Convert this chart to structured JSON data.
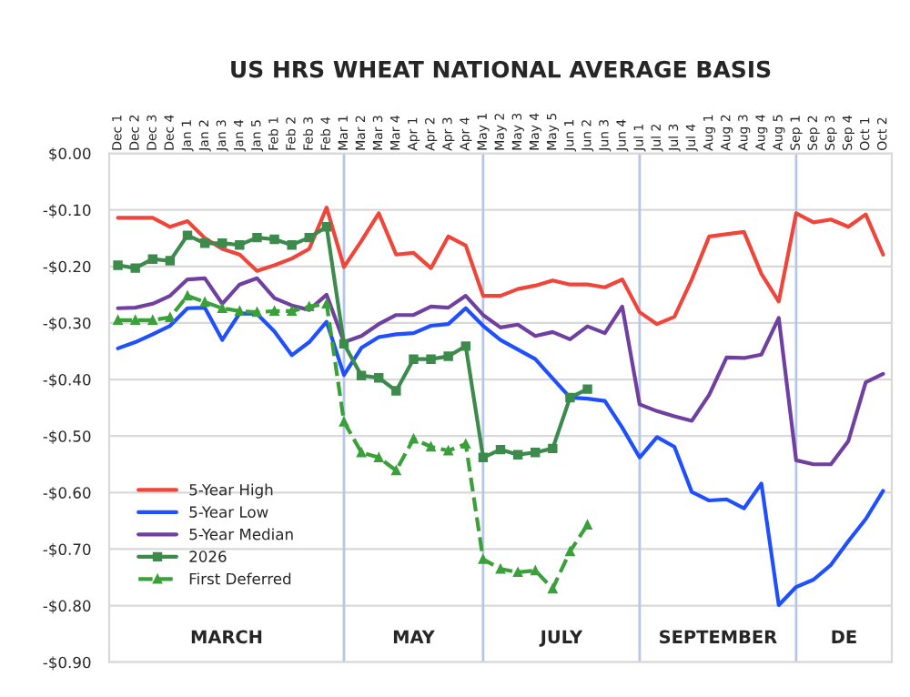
{
  "chart_data": {
    "type": "line",
    "title": "US HRS WHEAT NATIONAL AVERAGE BASIS",
    "categories": [
      "Dec 1",
      "Dec 2",
      "Dec 3",
      "Dec 4",
      "Jan 1",
      "Jan 2",
      "Jan 3",
      "Jan 4",
      "Jan 5",
      "Feb 1",
      "Feb 2",
      "Feb 3",
      "Feb 4",
      "Mar 1",
      "Mar 2",
      "Mar 3",
      "Mar 4",
      "Apr 1",
      "Apr 2",
      "Apr 3",
      "Apr 4",
      "May 1",
      "May 2",
      "May 3",
      "May 4",
      "May 5",
      "Jun 1",
      "Jun 2",
      "Jun 3",
      "Jun 4",
      "Jul 1",
      "Jul 2",
      "Jul 3",
      "Jul 4",
      "Aug 1",
      "Aug 2",
      "Aug 3",
      "Aug 4",
      "Aug 5",
      "Sep 1",
      "Sep 2",
      "Sep 3",
      "Sep 4",
      "Oct 1",
      "Oct 2"
    ],
    "series": [
      {
        "name": "5-Year High",
        "color": "#f0453a",
        "values": [
          -0.114,
          -0.114,
          -0.114,
          -0.13,
          -0.12,
          -0.15,
          -0.169,
          -0.179,
          -0.208,
          -0.198,
          -0.186,
          -0.169,
          -0.096,
          -0.201,
          -0.155,
          -0.106,
          -0.179,
          -0.176,
          -0.203,
          -0.147,
          -0.163,
          -0.252,
          -0.252,
          -0.24,
          -0.234,
          -0.225,
          -0.232,
          -0.232,
          -0.237,
          -0.223,
          -0.281,
          -0.302,
          -0.289,
          -0.223,
          -0.147,
          -0.143,
          -0.139,
          -0.213,
          -0.262,
          -0.106,
          -0.122,
          -0.117,
          -0.13,
          -0.108,
          -0.179
        ]
      },
      {
        "name": "5-Year Low",
        "color": "#1f4fff",
        "values": [
          -0.345,
          -0.334,
          -0.32,
          -0.305,
          -0.274,
          -0.273,
          -0.33,
          -0.283,
          -0.284,
          -0.315,
          -0.357,
          -0.334,
          -0.298,
          -0.392,
          -0.344,
          -0.325,
          -0.32,
          -0.318,
          -0.305,
          -0.302,
          -0.274,
          -0.305,
          -0.33,
          -0.347,
          -0.364,
          -0.398,
          -0.432,
          -0.434,
          -0.438,
          -0.485,
          -0.538,
          -0.502,
          -0.519,
          -0.599,
          -0.614,
          -0.612,
          -0.628,
          -0.584,
          -0.799,
          -0.767,
          -0.754,
          -0.728,
          -0.686,
          -0.647,
          -0.597
        ]
      },
      {
        "name": "5-Year Median",
        "color": "#7040a0",
        "values": [
          -0.274,
          -0.273,
          -0.266,
          -0.252,
          -0.223,
          -0.221,
          -0.266,
          -0.232,
          -0.221,
          -0.256,
          -0.269,
          -0.277,
          -0.25,
          -0.334,
          -0.323,
          -0.302,
          -0.286,
          -0.286,
          -0.271,
          -0.273,
          -0.252,
          -0.286,
          -0.308,
          -0.303,
          -0.323,
          -0.316,
          -0.329,
          -0.306,
          -0.318,
          -0.271,
          -0.444,
          -0.456,
          -0.465,
          -0.473,
          -0.427,
          -0.361,
          -0.362,
          -0.356,
          -0.291,
          -0.543,
          -0.55,
          -0.55,
          -0.509,
          -0.405,
          -0.39
        ]
      },
      {
        "name": "2026",
        "color": "#3c8a4c",
        "marker": "square",
        "line_style": "solid",
        "values": [
          -0.198,
          -0.203,
          -0.187,
          -0.19,
          -0.145,
          -0.159,
          -0.159,
          -0.162,
          -0.149,
          -0.152,
          -0.162,
          -0.149,
          -0.13,
          -0.337,
          -0.393,
          -0.397,
          -0.42,
          -0.364,
          -0.364,
          -0.359,
          -0.341,
          -0.538,
          -0.524,
          -0.533,
          -0.529,
          -0.522,
          -0.432,
          -0.417,
          null,
          null,
          null,
          null,
          null,
          null,
          null,
          null,
          null,
          null,
          null,
          null,
          null,
          null,
          null,
          null,
          null
        ]
      },
      {
        "name": "First Deferred",
        "color": "#3aa03a",
        "marker": "triangle",
        "line_style": "dashed",
        "values": [
          -0.295,
          -0.295,
          -0.295,
          -0.29,
          -0.252,
          -0.263,
          -0.274,
          -0.279,
          -0.281,
          -0.279,
          -0.279,
          -0.271,
          -0.266,
          -0.475,
          -0.529,
          -0.538,
          -0.561,
          -0.505,
          -0.519,
          -0.526,
          -0.514,
          -0.718,
          -0.735,
          -0.741,
          -0.738,
          -0.77,
          -0.704,
          -0.657,
          null,
          null,
          null,
          null,
          null,
          null,
          null,
          null,
          null,
          null,
          null,
          null,
          null,
          null,
          null,
          null,
          null
        ]
      }
    ],
    "ylim": [
      -0.9,
      0
    ],
    "yticks": [
      {
        "value": 0,
        "label": "$0.00"
      },
      {
        "value": -0.1,
        "label": "-$0.10"
      },
      {
        "value": -0.2,
        "label": "-$0.20"
      },
      {
        "value": -0.3,
        "label": "-$0.30"
      },
      {
        "value": -0.4,
        "label": "-$0.40"
      },
      {
        "value": -0.5,
        "label": "-$0.50"
      },
      {
        "value": -0.6,
        "label": "-$0.60"
      },
      {
        "value": -0.7,
        "label": "-$0.70"
      },
      {
        "value": -0.8,
        "label": "-$0.80"
      },
      {
        "value": -0.9,
        "label": "-$0.90"
      }
    ],
    "grid": "y",
    "legend": "bottom left",
    "ref_lines": [
      {
        "axis": "x",
        "value": "Mar 1",
        "color": "#b4c7e7"
      },
      {
        "axis": "x",
        "value": "May 1",
        "color": "#b4c7e7"
      },
      {
        "axis": "x",
        "value": "Jul 1",
        "color": "#b4c7e7"
      },
      {
        "axis": "x",
        "value": "Sep 1",
        "color": "#b4c7e7"
      }
    ],
    "annotations": [
      "MARCH",
      "MAY",
      "JULY",
      "SEPTEMBER",
      "DE"
    ]
  }
}
